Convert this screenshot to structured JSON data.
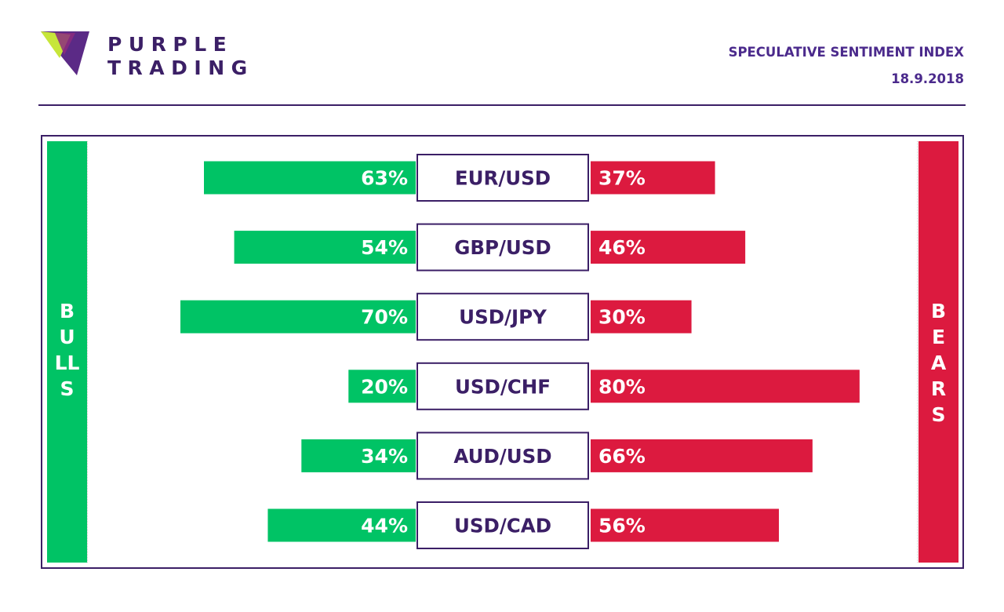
{
  "brand": {
    "line1": "PURPLE",
    "line2": "TRADING",
    "logo_icon": "purple-trading-logo-icon"
  },
  "header": {
    "title": "SPECULATIVE SENTIMENT INDEX",
    "date": "18.9.2018"
  },
  "sides": {
    "bulls": "BULLS",
    "bears": "BEARS"
  },
  "colors": {
    "bulls": "#00c365",
    "bears": "#dc1a3f",
    "accent": "#3b1f66"
  },
  "chart_data": {
    "type": "bar",
    "title": "SPECULATIVE SENTIMENT INDEX",
    "categories": [
      "EUR/USD",
      "GBP/USD",
      "USD/JPY",
      "USD/CHF",
      "AUD/USD",
      "USD/CAD"
    ],
    "series": [
      {
        "name": "BULLS",
        "values": [
          63,
          54,
          70,
          20,
          34,
          44
        ]
      },
      {
        "name": "BEARS",
        "values": [
          37,
          46,
          30,
          80,
          66,
          56
        ]
      }
    ],
    "unit": "%",
    "xlim": [
      0,
      100
    ],
    "grid": false
  }
}
